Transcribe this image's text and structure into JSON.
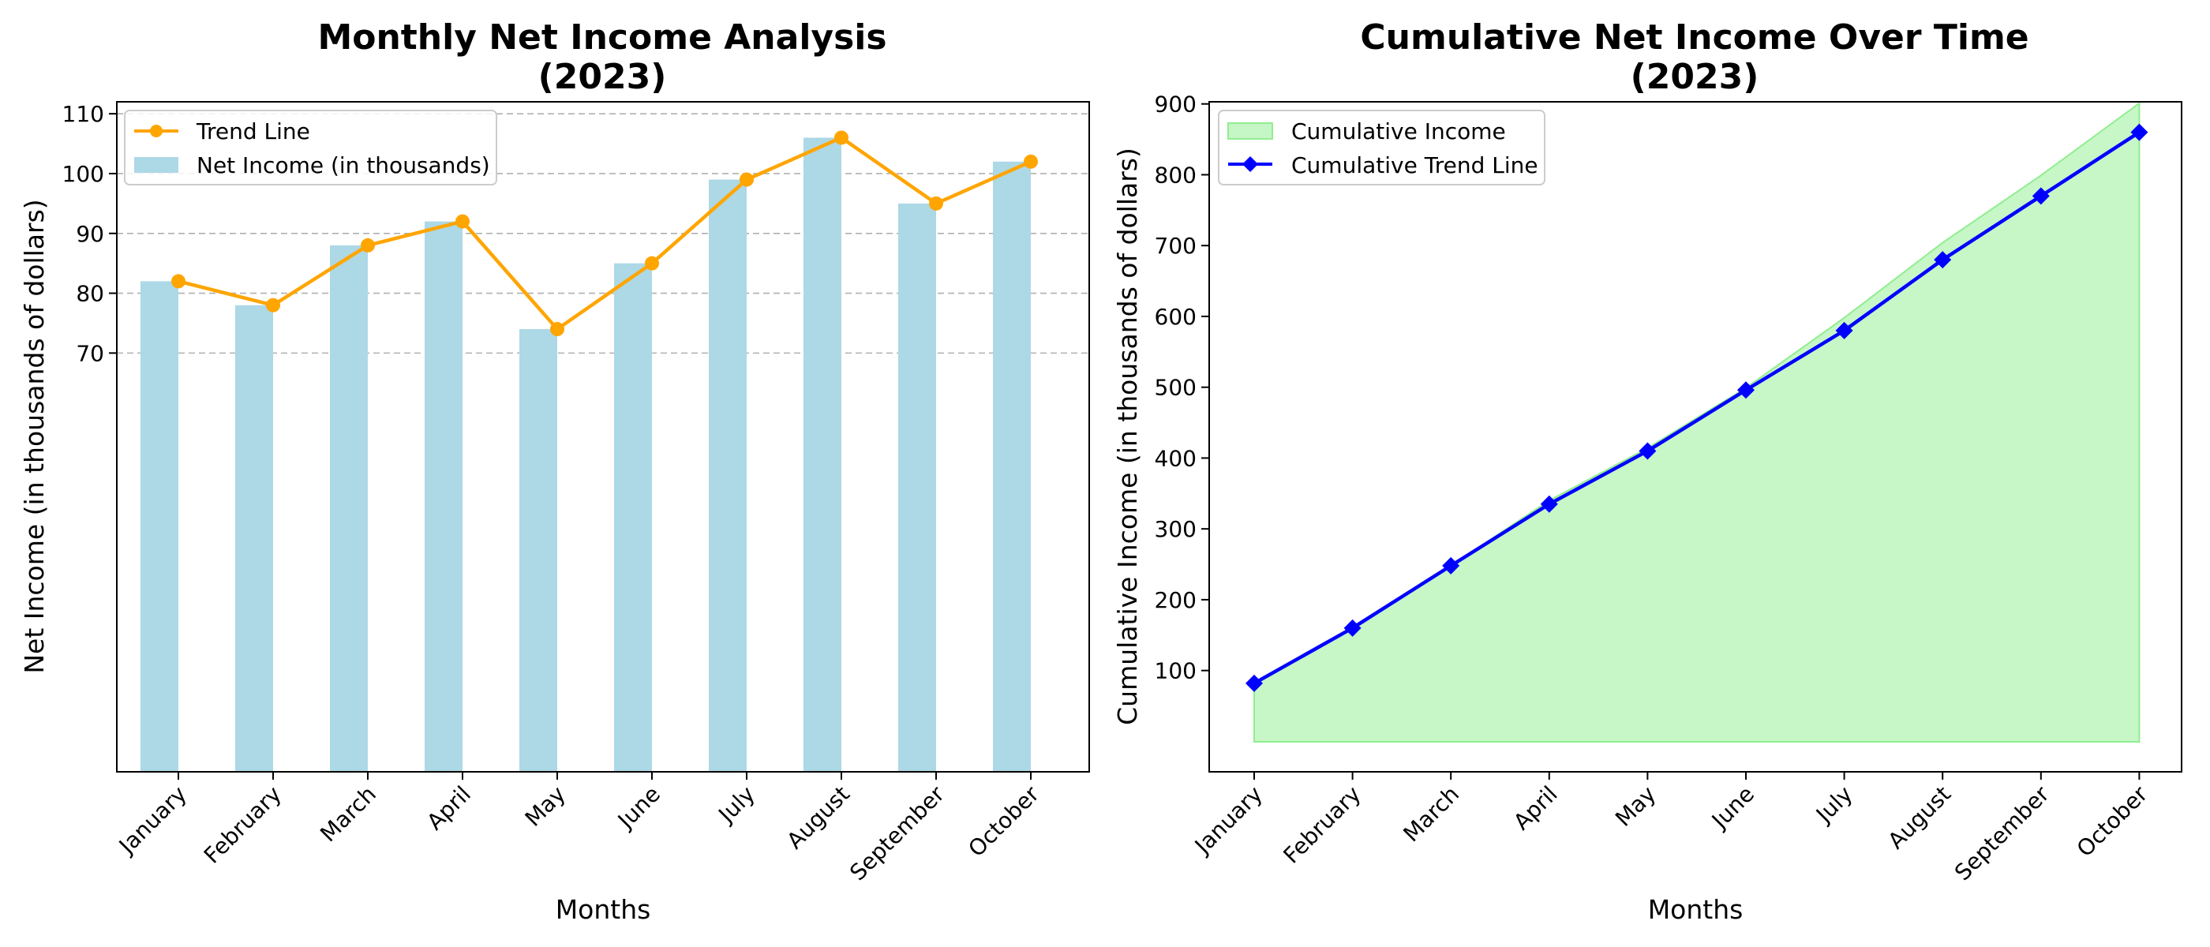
{
  "chart_data": [
    {
      "type": "bar",
      "title_line1": "Monthly Net Income Analysis",
      "title_line2": "(2023)",
      "xlabel": "Months",
      "ylabel": "Net Income (in thousands of dollars)",
      "categories": [
        "January",
        "February",
        "March",
        "April",
        "May",
        "June",
        "July",
        "August",
        "September",
        "October"
      ],
      "yticks": [
        70,
        80,
        90,
        100,
        110
      ],
      "ylim": [
        0,
        112
      ],
      "grid": "horizontal dashed",
      "legend_position": "top-left",
      "series": [
        {
          "name": "Net Income (in thousands)",
          "kind": "bar",
          "color": "#add8e6",
          "values": [
            82,
            78,
            88,
            92,
            74,
            85,
            99,
            106,
            95,
            102
          ]
        },
        {
          "name": "Trend Line",
          "kind": "line",
          "marker": "circle",
          "color": "#ffa500",
          "values": [
            82,
            78,
            88,
            92,
            74,
            85,
            99,
            106,
            95,
            102
          ]
        }
      ]
    },
    {
      "type": "area",
      "title_line1": "Cumulative Net Income Over Time",
      "title_line2": "(2023)",
      "xlabel": "Months",
      "ylabel": "Cumulative Income (in thousands of dollars)",
      "categories": [
        "January",
        "February",
        "March",
        "April",
        "May",
        "June",
        "July",
        "August",
        "September",
        "October"
      ],
      "yticks": [
        100,
        200,
        300,
        400,
        500,
        600,
        700,
        800,
        900
      ],
      "ylim": [
        -43,
        903
      ],
      "grid": "none",
      "legend_position": "top-left",
      "series": [
        {
          "name": "Cumulative Income",
          "kind": "area",
          "color": "#90ee90",
          "values": [
            82,
            160,
            248,
            340,
            414,
            499,
            598,
            704,
            799,
            901
          ]
        },
        {
          "name": "Cumulative Trend Line",
          "kind": "line",
          "marker": "diamond",
          "color": "#0000ff",
          "values": [
            82,
            160,
            248,
            335,
            410,
            496,
            580,
            680,
            770,
            860
          ]
        }
      ]
    }
  ]
}
